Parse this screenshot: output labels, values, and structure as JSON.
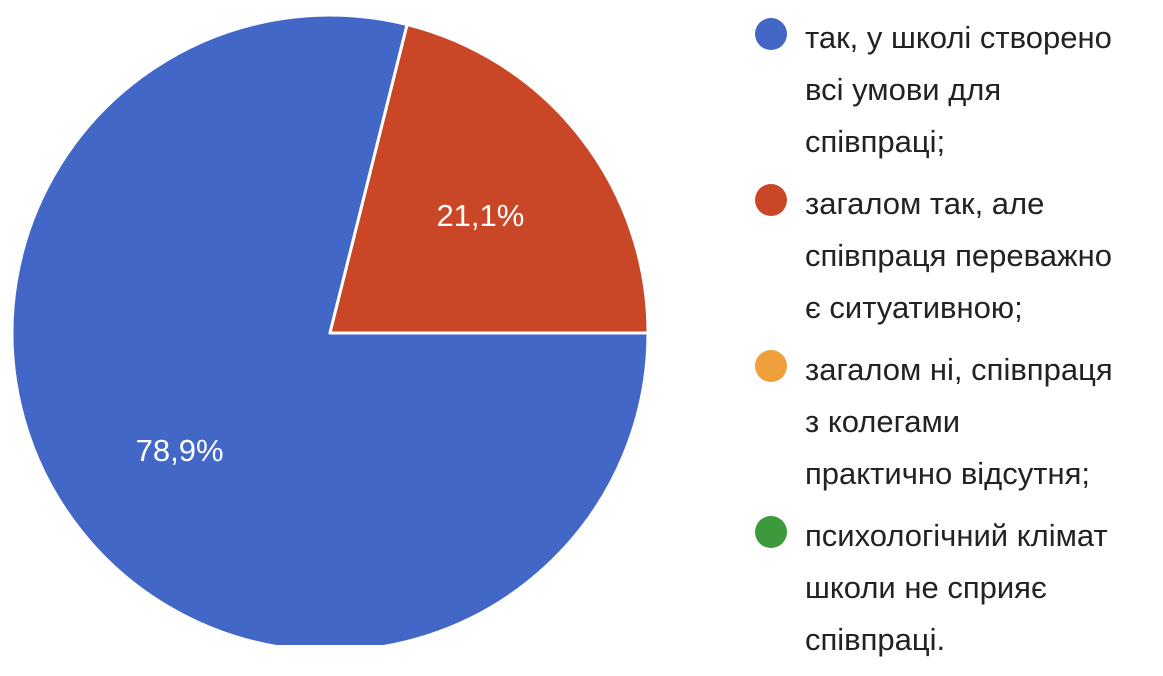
{
  "chart_data": {
    "type": "pie",
    "categories": [
      "так, у школі створено всі умови для співпраці;",
      "загалом так, але співпраця переважно є ситуативною;",
      "загалом ні, співпраця з колегами практично відсутня;",
      "психологічний клімат школи не сприяє співпраці."
    ],
    "values": [
      78.9,
      21.1,
      0,
      0
    ],
    "value_labels": [
      "78,9%",
      "21,1%",
      "",
      ""
    ],
    "colors": [
      "#4267c6",
      "#c94726",
      "#f0a03a",
      "#3d9a3a"
    ],
    "legend_position": "right"
  },
  "legend": {
    "items": [
      {
        "label": "так, у школі створено\nвсі умови для\nспівпраці;",
        "color": "#4267c6"
      },
      {
        "label": "загалом так, але\nспівпраця переважно\nє ситуативною;",
        "color": "#c94726"
      },
      {
        "label": "загалом ні, співпраця\nз колегами\nпрактично відсутня;",
        "color": "#f0a03a"
      },
      {
        "label": "психологічний клімат\nшколи не сприяє\nспівпраці.",
        "color": "#3d9a3a"
      }
    ]
  }
}
